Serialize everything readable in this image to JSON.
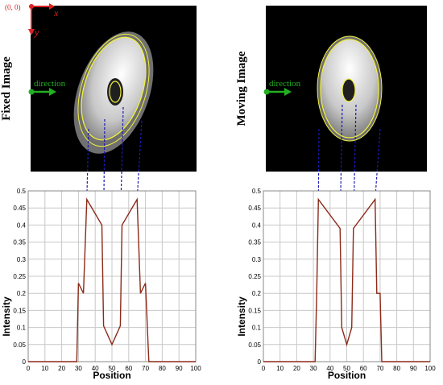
{
  "axes_indicator": {
    "origin_label": "(0, 0)",
    "x_label": "x",
    "y_label": "y"
  },
  "direction_label": "direction",
  "colors": {
    "outer_ellipse": "#707070",
    "contour": "#f0f040",
    "direction_arrow": "#22b022",
    "inner_hole": "#202020",
    "projection_line": "#1a1ab4",
    "profile_line": "#8b2a18",
    "origin_red": "#dd2222"
  },
  "chart_data": [
    {
      "type": "line",
      "panel_title": "Fixed Image",
      "xlabel": "Position",
      "ylabel": "Intensity",
      "xlim": [
        0,
        100
      ],
      "ylim": [
        0,
        0.5
      ],
      "xticks": [
        "0",
        "10",
        "20",
        "30",
        "40",
        "50",
        "60",
        "70",
        "80",
        "90",
        "100"
      ],
      "yticks": [
        "0",
        "0.05",
        "0.1",
        "0.15",
        "0.2",
        "0.25",
        "0.3",
        "0.35",
        "0.4",
        "0.45",
        "0.5"
      ],
      "grid": true,
      "points": [
        [
          0,
          0
        ],
        [
          29,
          0
        ],
        [
          30,
          0.23
        ],
        [
          33,
          0.2
        ],
        [
          35,
          0.475
        ],
        [
          44,
          0.4
        ],
        [
          45,
          0.105
        ],
        [
          50,
          0.05
        ],
        [
          55,
          0.105
        ],
        [
          56,
          0.4
        ],
        [
          65,
          0.475
        ],
        [
          67,
          0.2
        ],
        [
          70,
          0.23
        ],
        [
          72,
          0
        ],
        [
          100,
          0
        ]
      ]
    },
    {
      "type": "line",
      "panel_title": "Moving Image",
      "xlabel": "Position",
      "ylabel": "Intensity",
      "xlim": [
        0,
        100
      ],
      "ylim": [
        0,
        0.5
      ],
      "xticks": [
        "0",
        "10",
        "20",
        "30",
        "40",
        "50",
        "60",
        "70",
        "80",
        "90",
        "100"
      ],
      "yticks": [
        "0",
        "0.05",
        "0.1",
        "0.15",
        "0.2",
        "0.25",
        "0.3",
        "0.35",
        "0.4",
        "0.45",
        "0.5"
      ],
      "grid": true,
      "points": [
        [
          0,
          0
        ],
        [
          31,
          0
        ],
        [
          32,
          0.2
        ],
        [
          33,
          0.475
        ],
        [
          46,
          0.39
        ],
        [
          47,
          0.1
        ],
        [
          50,
          0.05
        ],
        [
          53,
          0.1
        ],
        [
          54,
          0.39
        ],
        [
          67,
          0.475
        ],
        [
          68,
          0.2
        ],
        [
          70,
          0.2
        ],
        [
          71,
          0
        ],
        [
          100,
          0
        ]
      ]
    }
  ]
}
